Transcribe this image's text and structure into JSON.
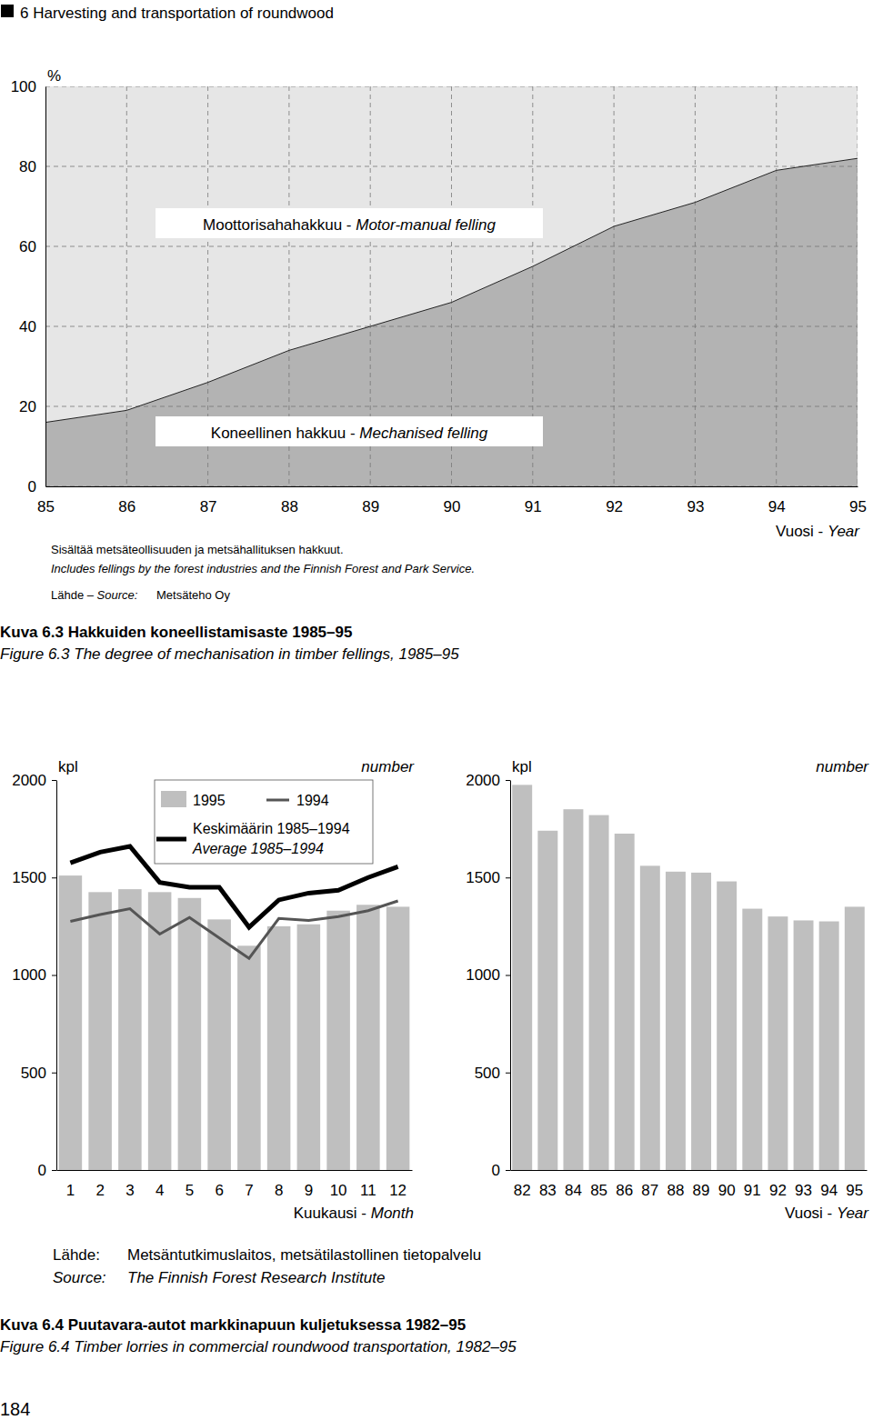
{
  "page": {
    "header": "6 Harvesting and transportation of roundwood",
    "number": "184"
  },
  "chart_data": [
    {
      "type": "area",
      "stacked": true,
      "grid": true,
      "title": "Kuva 6.3 Hakkuiden koneellistamisaste 1985–95",
      "subtitle": "Figure 6.3 The degree of mechanisation in timber fellings, 1985–95",
      "x_label": "Vuosi - Year",
      "y_label": "%",
      "annotations": [
        "Sisältää metsäteollisuuden ja metsähallituksen hakkuut.",
        "Includes fellings by the forest industries and the Finnish Forest and Park Service."
      ],
      "source": [
        "Lähde – Source:",
        "Metsäteho Oy"
      ],
      "x": [
        85,
        86,
        87,
        88,
        89,
        90,
        91,
        92,
        93,
        94,
        95
      ],
      "series": [
        {
          "name": "Koneellinen hakkuu - Mechanised felling",
          "color": "#b3b3b3",
          "values": [
            16,
            19,
            26,
            34,
            40,
            46,
            55,
            65,
            71,
            79,
            82
          ]
        },
        {
          "name": "Moottorisahahakkuu - Motor-manual felling",
          "color": "#e6e6e6",
          "values": [
            84,
            81,
            74,
            66,
            60,
            54,
            45,
            35,
            29,
            21,
            18
          ]
        }
      ],
      "xlim": [
        85,
        95
      ],
      "xticks": [
        85,
        86,
        87,
        88,
        89,
        90,
        91,
        92,
        93,
        94,
        95
      ],
      "ylim": [
        0,
        100
      ],
      "yticks": [
        0,
        20,
        40,
        60,
        80,
        100
      ]
    },
    {
      "type": "bar",
      "legend": "top",
      "title": "Kuva 6.4 Puutavara-autot markkinapuun kuljetuksessa 1982–95",
      "subtitle": "Figure 6.4 Timber lorries in commercial roundwood transportation, 1982–95",
      "x_label": "Kuukausi - Month",
      "y_label": "kpl",
      "annotations": [
        "number"
      ],
      "source": [
        "Lähde:",
        "Source:",
        "Metsäntutkimuslaitos, metsätilastollinen tietopalvelu",
        "The Finnish Forest Research Institute"
      ],
      "categories": [
        "1",
        "2",
        "3",
        "4",
        "5",
        "6",
        "7",
        "8",
        "9",
        "10",
        "11",
        "12"
      ],
      "series": [
        {
          "name": "1995",
          "type": "bar",
          "color": "#bfbfbf",
          "values": [
            1510,
            1425,
            1440,
            1425,
            1395,
            1285,
            1150,
            1250,
            1260,
            1330,
            1360,
            1350
          ]
        },
        {
          "name": "1994",
          "type": "line",
          "color": "#555555",
          "values": [
            1275,
            1310,
            1340,
            1210,
            1295,
            1190,
            1085,
            1290,
            1280,
            1300,
            1330,
            1380
          ]
        },
        {
          "name": "Keskimäärin 1985–1994\nAverage 1985–1994",
          "type": "line",
          "color": "#000000",
          "values": [
            1575,
            1630,
            1660,
            1475,
            1450,
            1450,
            1245,
            1385,
            1420,
            1435,
            1500,
            1555
          ]
        }
      ],
      "ylim": [
        0,
        2000
      ],
      "yticks": [
        0,
        500,
        1000,
        1500,
        2000
      ]
    },
    {
      "type": "bar",
      "x_label": "Vuosi - Year",
      "y_label": "kpl",
      "annotations": [
        "number"
      ],
      "categories": [
        "82",
        "83",
        "84",
        "85",
        "86",
        "87",
        "88",
        "89",
        "90",
        "91",
        "92",
        "93",
        "94",
        "95"
      ],
      "values": [
        1975,
        1740,
        1850,
        1820,
        1725,
        1560,
        1530,
        1525,
        1480,
        1340,
        1300,
        1280,
        1275,
        1350
      ],
      "color": "#bfbfbf",
      "ylim": [
        0,
        2000
      ],
      "yticks": [
        0,
        500,
        1000,
        1500,
        2000
      ]
    }
  ]
}
